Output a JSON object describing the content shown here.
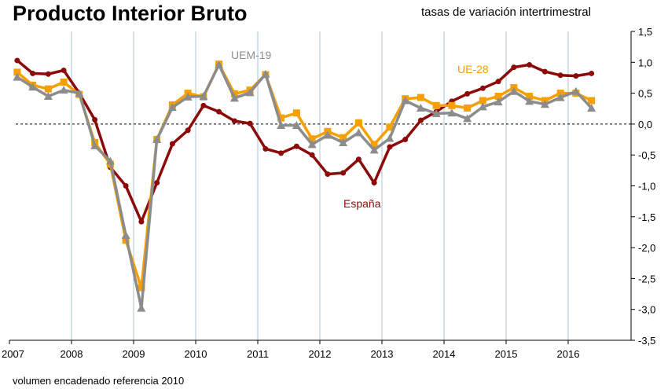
{
  "colors": {
    "espana": "#8b0a0a",
    "ue28": "#f5a000",
    "uem19": "#8c8c8c",
    "gridline": "#a9c4de",
    "zero_line": "#000000"
  },
  "chart_data": {
    "type": "line",
    "title": "Producto Interior Bruto",
    "subtitle": "tasas de variación intertrimestral",
    "note": "volumen encadenado referencia 2010",
    "xlabel": "",
    "ylabel": "",
    "x_ticks": [
      "2007",
      "2008",
      "2009",
      "2010",
      "2011",
      "2012",
      "2013",
      "2014",
      "2015",
      "2016"
    ],
    "y_ticks": [
      "1,5",
      "1,0",
      "0,5",
      "0,0",
      "-0,5",
      "-1,0",
      "-1,5",
      "-2,0",
      "-2,5",
      "-3,0",
      "-3,5"
    ],
    "ylim": [
      -3.5,
      1.5
    ],
    "x_start": "2007-Q1",
    "grid": true,
    "zero_line_dashed": true,
    "series": [
      {
        "name": "España",
        "color": "#8b0a0a",
        "marker": "circle",
        "values": [
          1.03,
          0.82,
          0.81,
          0.87,
          0.5,
          0.07,
          -0.7,
          -1.0,
          -1.58,
          -0.95,
          -0.32,
          -0.1,
          0.3,
          0.2,
          0.05,
          0.01,
          -0.4,
          -0.47,
          -0.36,
          -0.5,
          -0.81,
          -0.79,
          -0.57,
          -0.95,
          -0.37,
          -0.25,
          0.06,
          0.2,
          0.37,
          0.49,
          0.58,
          0.69,
          0.92,
          0.96,
          0.85,
          0.79,
          0.78,
          0.82
        ]
      },
      {
        "name": "UE-28",
        "color": "#f5a000",
        "marker": "square",
        "values": [
          0.84,
          0.63,
          0.57,
          0.68,
          0.48,
          -0.3,
          -0.65,
          -1.88,
          -2.65,
          -0.25,
          0.31,
          0.5,
          0.44,
          0.97,
          0.49,
          0.55,
          0.8,
          0.1,
          0.18,
          -0.24,
          -0.12,
          -0.22,
          0.02,
          -0.33,
          -0.05,
          0.41,
          0.43,
          0.3,
          0.3,
          0.26,
          0.38,
          0.45,
          0.59,
          0.45,
          0.38,
          0.5,
          0.5,
          0.38
        ]
      },
      {
        "name": "UEM-19",
        "color": "#8c8c8c",
        "marker": "triangle",
        "values": [
          0.76,
          0.6,
          0.45,
          0.55,
          0.5,
          -0.35,
          -0.6,
          -1.8,
          -2.98,
          -0.25,
          0.27,
          0.44,
          0.45,
          0.96,
          0.42,
          0.51,
          0.81,
          -0.02,
          -0.02,
          -0.33,
          -0.18,
          -0.3,
          -0.14,
          -0.42,
          -0.23,
          0.38,
          0.26,
          0.17,
          0.18,
          0.09,
          0.28,
          0.36,
          0.53,
          0.37,
          0.32,
          0.43,
          0.53,
          0.26
        ]
      }
    ]
  }
}
